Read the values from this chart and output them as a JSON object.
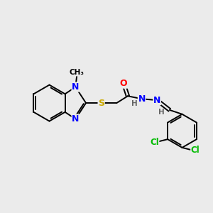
{
  "background_color": "#ebebeb",
  "bond_color": "#000000",
  "atom_colors": {
    "N": "#0000ff",
    "O": "#ff0000",
    "S": "#ccaa00",
    "Cl": "#00bb00",
    "C": "#000000",
    "H": "#666666"
  },
  "figsize": [
    3.0,
    3.0
  ],
  "dpi": 100,
  "lw": 1.4
}
